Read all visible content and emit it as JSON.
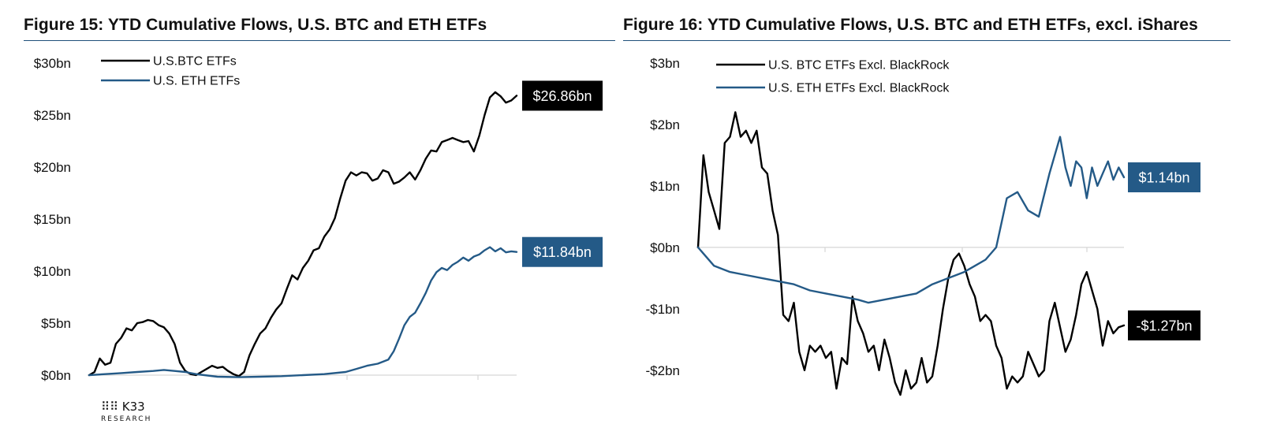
{
  "colors": {
    "btc": "#000000",
    "eth": "#245a87",
    "label_btc_bg": "#000000",
    "label_eth_bg": "#245a87",
    "rule": "#1f4f7a",
    "grid": "#d6d6d6"
  },
  "branding": {
    "logo_icon": "k33-dots-icon",
    "logo_text": "K33",
    "logo_sub": "RESEARCH"
  },
  "chart_data": [
    {
      "type": "line",
      "title": "Figure 15: YTD Cumulative Flows, U.S. BTC and ETH ETFs",
      "xlabel": "",
      "ylabel": "",
      "ylim": [
        0,
        30
      ],
      "yticks": [
        0,
        5,
        10,
        15,
        20,
        25,
        30
      ],
      "ytick_labels": [
        "$0bn",
        "$5bn",
        "$10bn",
        "$15bn",
        "$20bn",
        "$25bn",
        "$30bn"
      ],
      "x_count": 100,
      "legend": {
        "position": "top-left"
      },
      "series": [
        {
          "name": "U.S.BTC ETFs",
          "points": [
            [
              0,
              0
            ],
            [
              1,
              0.3
            ],
            [
              2,
              1.6
            ],
            [
              3,
              1
            ],
            [
              4,
              1.2
            ],
            [
              5,
              3
            ],
            [
              6,
              3.6
            ],
            [
              7,
              4.5
            ],
            [
              8,
              4.3
            ],
            [
              9,
              5
            ],
            [
              10,
              5.1
            ],
            [
              11,
              5.3
            ],
            [
              12,
              5.2
            ],
            [
              13,
              4.8
            ],
            [
              14,
              4.6
            ],
            [
              15,
              4
            ],
            [
              16,
              3
            ],
            [
              17,
              1.2
            ],
            [
              18,
              0.4
            ],
            [
              19,
              0.1
            ],
            [
              20,
              0
            ],
            [
              21,
              0.3
            ],
            [
              22,
              0.6
            ],
            [
              23,
              0.9
            ],
            [
              24,
              0.7
            ],
            [
              25,
              0.8
            ],
            [
              26,
              0.4
            ],
            [
              27,
              0.1
            ],
            [
              28,
              -0.1
            ],
            [
              29,
              0.3
            ],
            [
              30,
              1.9
            ],
            [
              31,
              3
            ],
            [
              32,
              4
            ],
            [
              33,
              4.5
            ],
            [
              34,
              5.5
            ],
            [
              35,
              6.3
            ],
            [
              36,
              6.9
            ],
            [
              37,
              8.3
            ],
            [
              38,
              9.6
            ],
            [
              39,
              9.2
            ],
            [
              40,
              10.3
            ],
            [
              41,
              11
            ],
            [
              42,
              12
            ],
            [
              43,
              12.2
            ],
            [
              44,
              13.3
            ],
            [
              45,
              14
            ],
            [
              46,
              15.1
            ],
            [
              47,
              17
            ],
            [
              48,
              18.7
            ],
            [
              49,
              19.5
            ],
            [
              50,
              19.2
            ],
            [
              51,
              19.5
            ],
            [
              52,
              19.4
            ],
            [
              53,
              18.7
            ],
            [
              54,
              18.9
            ],
            [
              55,
              19.7
            ],
            [
              56,
              19.5
            ],
            [
              57,
              18.4
            ],
            [
              58,
              18.6
            ],
            [
              59,
              19
            ],
            [
              60,
              19.5
            ],
            [
              61,
              18.8
            ],
            [
              62,
              19.7
            ],
            [
              63,
              20.8
            ],
            [
              64,
              21.6
            ],
            [
              65,
              21.5
            ],
            [
              66,
              22.4
            ],
            [
              67,
              22.6
            ],
            [
              68,
              22.8
            ],
            [
              69,
              22.6
            ],
            [
              70,
              22.4
            ],
            [
              71,
              22.5
            ],
            [
              72,
              21.5
            ],
            [
              73,
              23
            ],
            [
              74,
              25
            ],
            [
              75,
              26.7
            ],
            [
              76,
              27.2
            ],
            [
              77,
              26.8
            ],
            [
              78,
              26.2
            ],
            [
              79,
              26.4
            ],
            [
              80,
              26.86
            ]
          ],
          "end_label": "$26.86bn"
        },
        {
          "name": "U.S. ETH ETFs",
          "points": [
            [
              0,
              0
            ],
            [
              3,
              0.1
            ],
            [
              6,
              0.2
            ],
            [
              9,
              0.3
            ],
            [
              12,
              0.4
            ],
            [
              14,
              0.5
            ],
            [
              16,
              0.4
            ],
            [
              18,
              0.3
            ],
            [
              20,
              0.1
            ],
            [
              24,
              -0.15
            ],
            [
              28,
              -0.2
            ],
            [
              32,
              -0.15
            ],
            [
              36,
              -0.1
            ],
            [
              40,
              0
            ],
            [
              44,
              0.1
            ],
            [
              48,
              0.3
            ],
            [
              50,
              0.6
            ],
            [
              52,
              0.9
            ],
            [
              54,
              1.1
            ],
            [
              56,
              1.5
            ],
            [
              57,
              2.3
            ],
            [
              58,
              3.5
            ],
            [
              59,
              4.8
            ],
            [
              60,
              5.6
            ],
            [
              61,
              6
            ],
            [
              62,
              6.9
            ],
            [
              63,
              7.9
            ],
            [
              64,
              9.1
            ],
            [
              65,
              9.9
            ],
            [
              66,
              10.3
            ],
            [
              67,
              10.1
            ],
            [
              68,
              10.6
            ],
            [
              69,
              10.9
            ],
            [
              70,
              11.3
            ],
            [
              71,
              11
            ],
            [
              72,
              11.4
            ],
            [
              73,
              11.6
            ],
            [
              74,
              12
            ],
            [
              75,
              12.3
            ],
            [
              76,
              11.9
            ],
            [
              77,
              12.2
            ],
            [
              78,
              11.8
            ],
            [
              79,
              11.9
            ],
            [
              80,
              11.84
            ]
          ],
          "end_label": "$11.84bn"
        }
      ]
    },
    {
      "type": "line",
      "title": "Figure 16: YTD Cumulative Flows, U.S. BTC and ETH ETFs, excl. iShares",
      "xlabel": "",
      "ylabel": "",
      "ylim": [
        -2.4,
        3
      ],
      "yticks": [
        -2,
        -1,
        0,
        1,
        2,
        3
      ],
      "ytick_labels": [
        "-$2bn",
        "-$1bn",
        "$0bn",
        "$1bn",
        "$2bn",
        "$3bn"
      ],
      "x_count": 100,
      "legend": {
        "position": "top-left"
      },
      "series": [
        {
          "name": "U.S. BTC ETFs Excl. BlackRock",
          "points": [
            [
              0,
              0
            ],
            [
              1,
              1.5
            ],
            [
              2,
              0.9
            ],
            [
              3,
              0.6
            ],
            [
              4,
              0.3
            ],
            [
              5,
              1.7
            ],
            [
              6,
              1.8
            ],
            [
              7,
              2.2
            ],
            [
              8,
              1.8
            ],
            [
              9,
              1.9
            ],
            [
              10,
              1.7
            ],
            [
              11,
              1.9
            ],
            [
              12,
              1.3
            ],
            [
              13,
              1.2
            ],
            [
              14,
              0.6
            ],
            [
              15,
              0.2
            ],
            [
              16,
              -1.1
            ],
            [
              17,
              -1.2
            ],
            [
              18,
              -0.9
            ],
            [
              19,
              -1.7
            ],
            [
              20,
              -2
            ],
            [
              21,
              -1.6
            ],
            [
              22,
              -1.7
            ],
            [
              23,
              -1.6
            ],
            [
              24,
              -1.8
            ],
            [
              25,
              -1.7
            ],
            [
              26,
              -2.3
            ],
            [
              27,
              -1.8
            ],
            [
              28,
              -1.9
            ],
            [
              29,
              -0.8
            ],
            [
              30,
              -1.2
            ],
            [
              31,
              -1.4
            ],
            [
              32,
              -1.7
            ],
            [
              33,
              -1.6
            ],
            [
              34,
              -2
            ],
            [
              35,
              -1.5
            ],
            [
              36,
              -1.8
            ],
            [
              37,
              -2.2
            ],
            [
              38,
              -2.4
            ],
            [
              39,
              -2
            ],
            [
              40,
              -2.3
            ],
            [
              41,
              -2.2
            ],
            [
              42,
              -1.8
            ],
            [
              43,
              -2.2
            ],
            [
              44,
              -2.1
            ],
            [
              45,
              -1.6
            ],
            [
              46,
              -1
            ],
            [
              47,
              -0.5
            ],
            [
              48,
              -0.2
            ],
            [
              49,
              -0.1
            ],
            [
              50,
              -0.3
            ],
            [
              51,
              -0.6
            ],
            [
              52,
              -0.8
            ],
            [
              53,
              -1.2
            ],
            [
              54,
              -1.1
            ],
            [
              55,
              -1.2
            ],
            [
              56,
              -1.6
            ],
            [
              57,
              -1.8
            ],
            [
              58,
              -2.3
            ],
            [
              59,
              -2.1
            ],
            [
              60,
              -2.2
            ],
            [
              61,
              -2.1
            ],
            [
              62,
              -1.7
            ],
            [
              63,
              -1.9
            ],
            [
              64,
              -2.1
            ],
            [
              65,
              -2
            ],
            [
              66,
              -1.2
            ],
            [
              67,
              -0.9
            ],
            [
              68,
              -1.3
            ],
            [
              69,
              -1.7
            ],
            [
              70,
              -1.5
            ],
            [
              71,
              -1.1
            ],
            [
              72,
              -0.6
            ],
            [
              73,
              -0.4
            ],
            [
              74,
              -0.7
            ],
            [
              75,
              -1
            ],
            [
              76,
              -1.6
            ],
            [
              77,
              -1.2
            ],
            [
              78,
              -1.4
            ],
            [
              79,
              -1.3
            ],
            [
              80,
              -1.27
            ]
          ],
          "end_label": "-$1.27bn"
        },
        {
          "name": "U.S. ETH ETFs Excl. BlackRock",
          "points": [
            [
              0,
              0
            ],
            [
              3,
              -0.3
            ],
            [
              6,
              -0.4
            ],
            [
              9,
              -0.45
            ],
            [
              12,
              -0.5
            ],
            [
              15,
              -0.55
            ],
            [
              18,
              -0.6
            ],
            [
              21,
              -0.7
            ],
            [
              24,
              -0.75
            ],
            [
              27,
              -0.8
            ],
            [
              30,
              -0.85
            ],
            [
              32,
              -0.9
            ],
            [
              35,
              -0.85
            ],
            [
              38,
              -0.8
            ],
            [
              41,
              -0.75
            ],
            [
              44,
              -0.6
            ],
            [
              47,
              -0.5
            ],
            [
              50,
              -0.4
            ],
            [
              52,
              -0.3
            ],
            [
              54,
              -0.2
            ],
            [
              56,
              0
            ],
            [
              58,
              0.8
            ],
            [
              60,
              0.9
            ],
            [
              62,
              0.6
            ],
            [
              64,
              0.5
            ],
            [
              66,
              1.2
            ],
            [
              68,
              1.8
            ],
            [
              69,
              1.3
            ],
            [
              70,
              1
            ],
            [
              71,
              1.4
            ],
            [
              72,
              1.3
            ],
            [
              73,
              0.8
            ],
            [
              74,
              1.3
            ],
            [
              75,
              1
            ],
            [
              76,
              1.2
            ],
            [
              77,
              1.4
            ],
            [
              78,
              1.1
            ],
            [
              79,
              1.3
            ],
            [
              80,
              1.14
            ]
          ],
          "end_label": "$1.14bn"
        }
      ]
    }
  ]
}
